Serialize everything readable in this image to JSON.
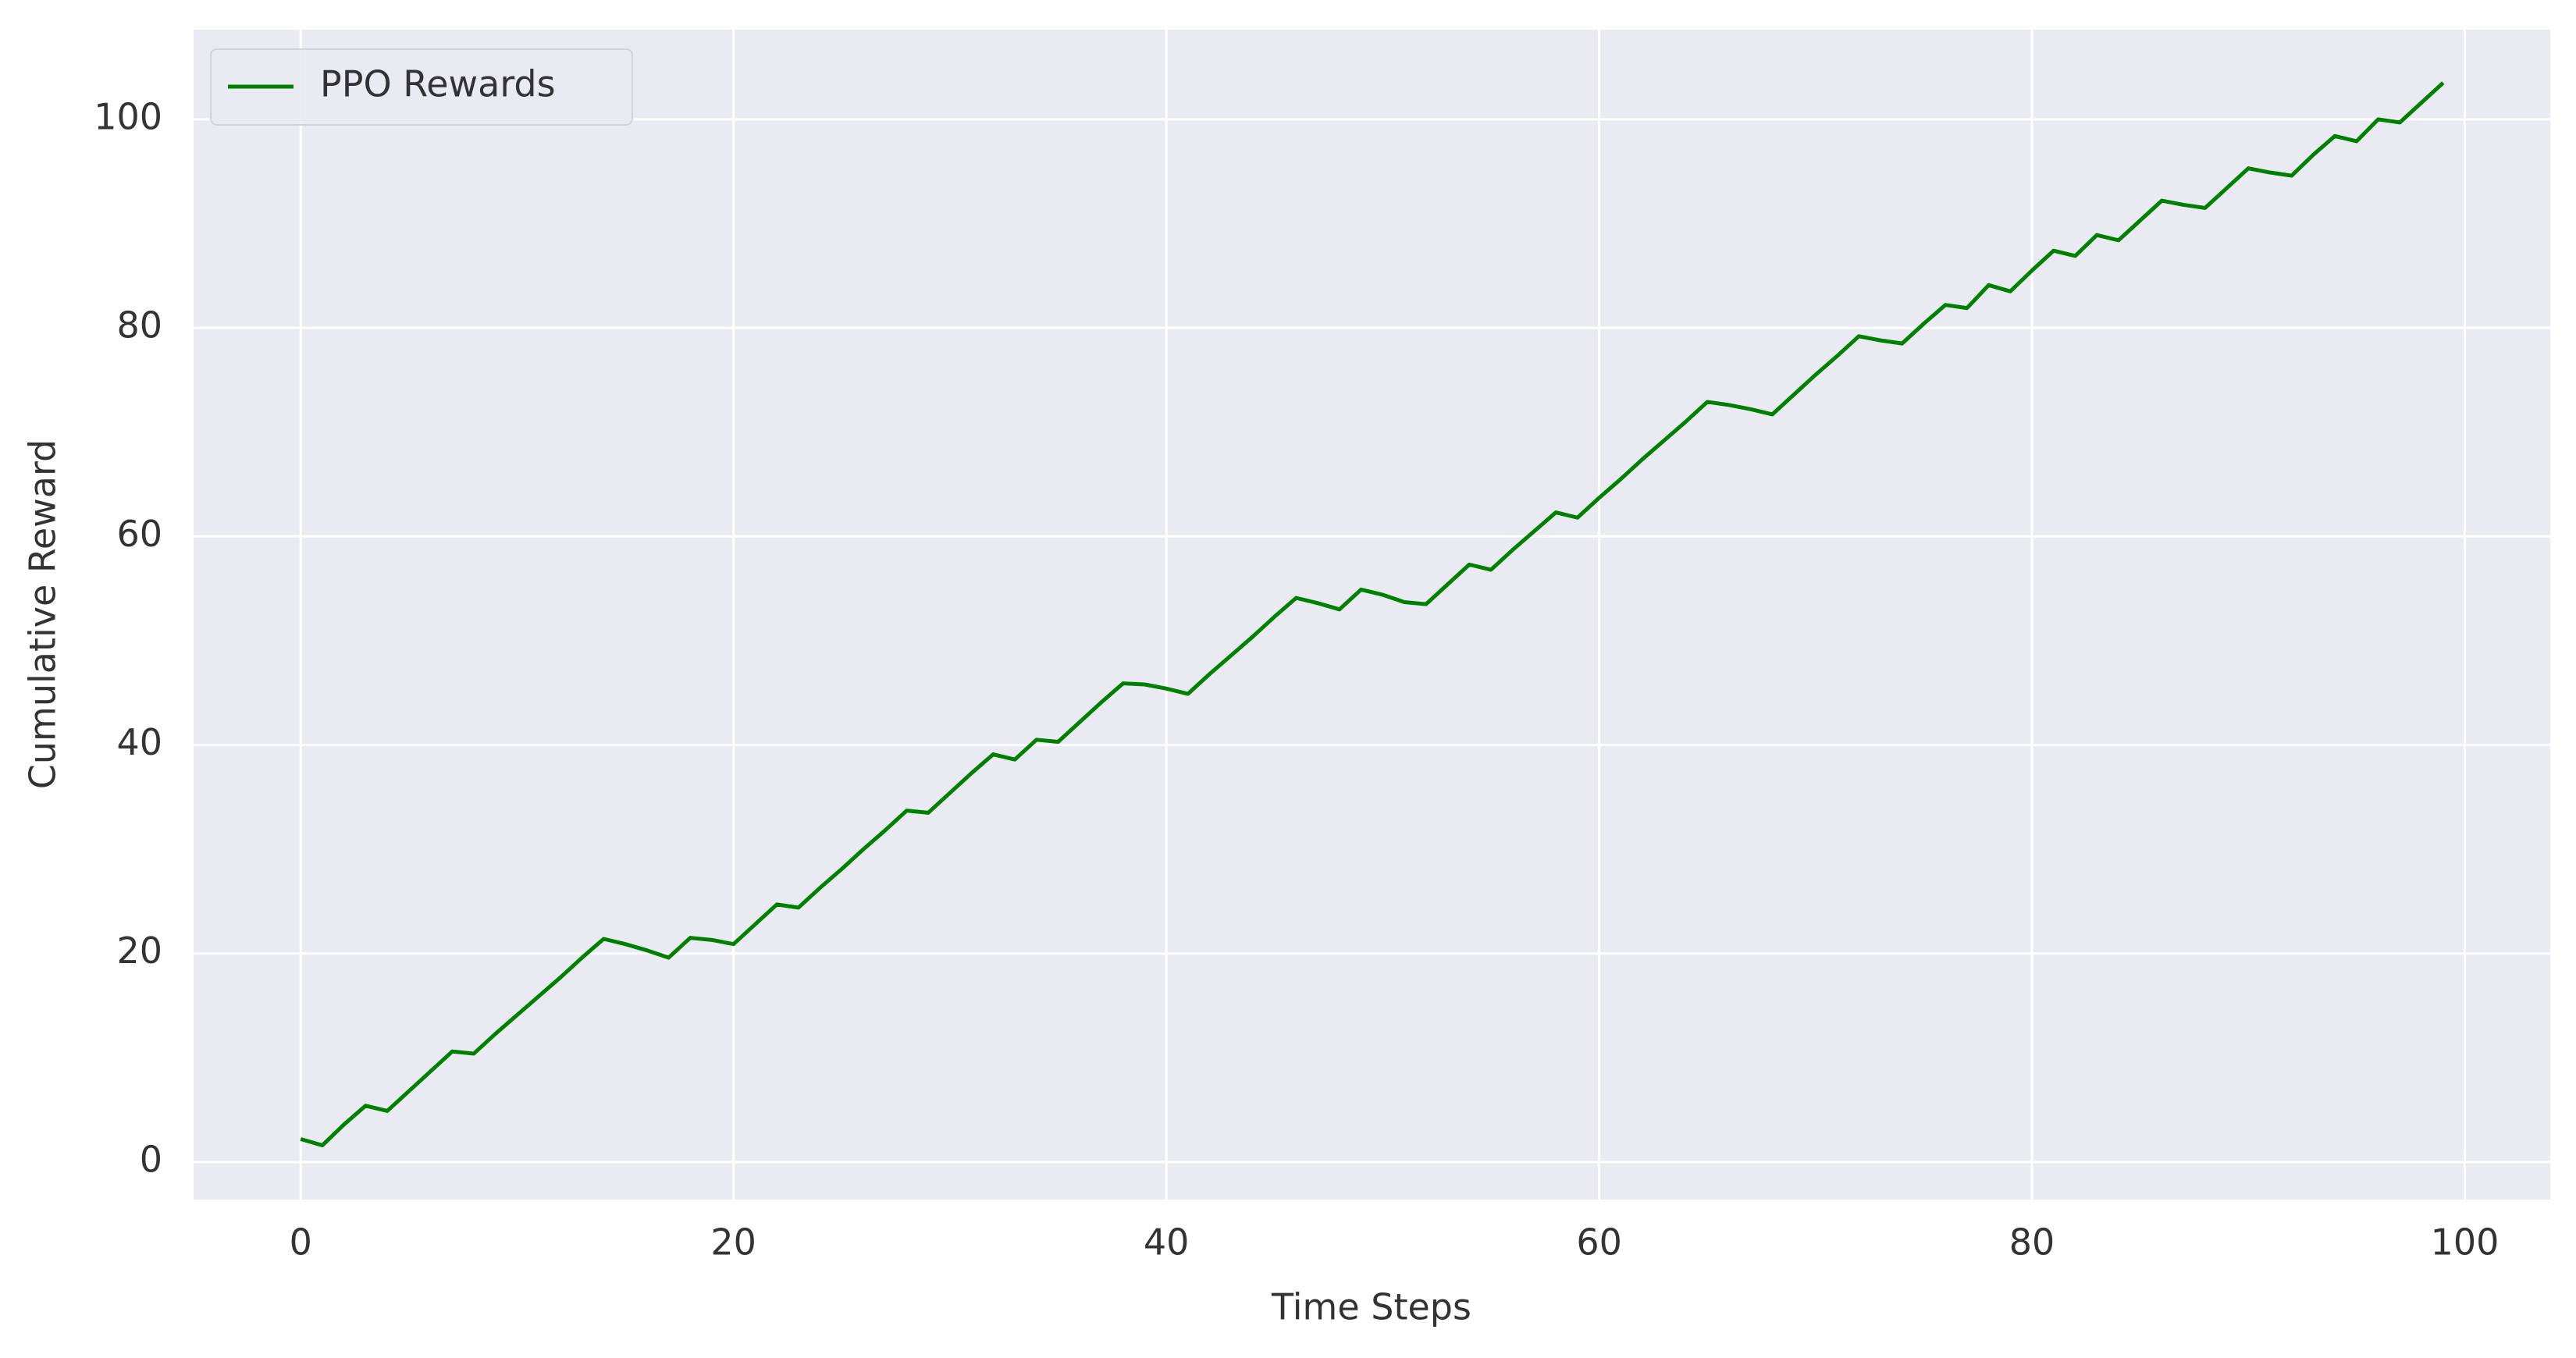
{
  "chart_data": {
    "type": "line",
    "xlabel": "Time Steps",
    "ylabel": "Cumulative Reward",
    "x": [
      0,
      1,
      2,
      3,
      4,
      5,
      6,
      7,
      8,
      9,
      10,
      11,
      12,
      13,
      14,
      15,
      16,
      17,
      18,
      19,
      20,
      21,
      22,
      23,
      24,
      25,
      26,
      27,
      28,
      29,
      30,
      31,
      32,
      33,
      34,
      35,
      36,
      37,
      38,
      39,
      40,
      41,
      42,
      43,
      44,
      45,
      46,
      47,
      48,
      49,
      50,
      51,
      52,
      53,
      54,
      55,
      56,
      57,
      58,
      59,
      60,
      61,
      62,
      63,
      64,
      65,
      66,
      67,
      68,
      69,
      70,
      71,
      72,
      73,
      74,
      75,
      76,
      77,
      78,
      79,
      80,
      81,
      82,
      83,
      84,
      85,
      86,
      87,
      88,
      89,
      90,
      91,
      92,
      93,
      94,
      95,
      96,
      97,
      98,
      99
    ],
    "series": [
      {
        "name": "PPO Rewards",
        "color": "#008000",
        "values": [
          2.2,
          1.6,
          3.6,
          5.4,
          4.9,
          6.8,
          8.7,
          10.6,
          10.4,
          12.3,
          14.1,
          15.9,
          17.7,
          19.6,
          21.4,
          20.9,
          20.3,
          19.6,
          21.5,
          21.3,
          20.9,
          22.8,
          24.7,
          24.4,
          26.3,
          28.1,
          30.0,
          31.8,
          33.7,
          33.5,
          35.4,
          37.3,
          39.1,
          38.6,
          40.5,
          40.3,
          42.2,
          44.1,
          45.9,
          45.8,
          45.4,
          44.9,
          46.8,
          48.6,
          50.4,
          52.3,
          54.1,
          53.6,
          53.0,
          54.9,
          54.4,
          53.7,
          53.5,
          55.4,
          57.3,
          56.8,
          58.7,
          60.5,
          62.3,
          61.8,
          63.7,
          65.5,
          67.4,
          69.2,
          71.0,
          72.9,
          72.6,
          72.2,
          71.7,
          73.6,
          75.5,
          77.3,
          79.2,
          78.8,
          78.5,
          80.4,
          82.2,
          81.9,
          84.1,
          83.5,
          85.5,
          87.4,
          86.9,
          88.9,
          88.4,
          90.3,
          92.2,
          91.8,
          91.5,
          93.4,
          95.3,
          94.9,
          94.6,
          96.6,
          98.4,
          97.9,
          100.0,
          99.7,
          101.6,
          103.5
        ]
      }
    ],
    "xlim": [
      -4.95,
      103.95
    ],
    "xticks": [
      0,
      20,
      40,
      60,
      80,
      100
    ],
    "ylim": [
      -3.6,
      108.6
    ],
    "yticks": [
      0,
      20,
      40,
      60,
      80,
      100
    ],
    "grid": true,
    "legend": "upper left"
  }
}
